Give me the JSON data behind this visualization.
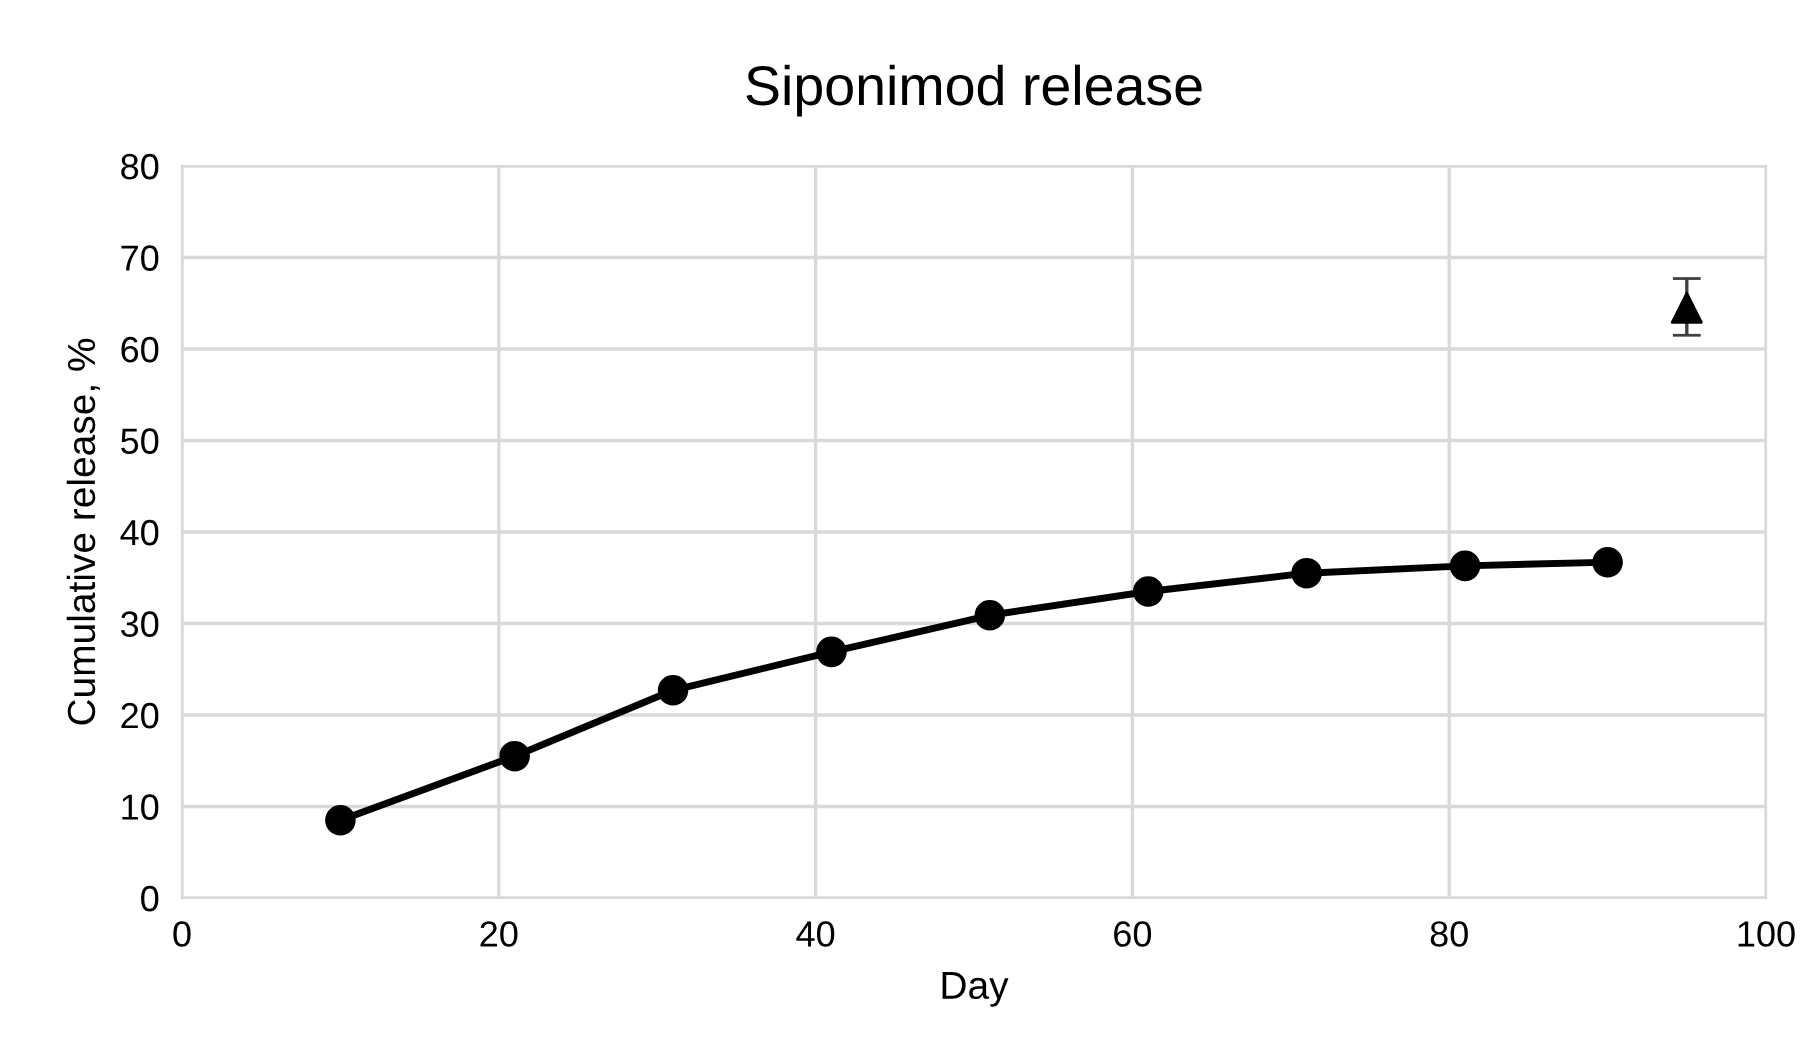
{
  "chart_data": {
    "type": "line",
    "title": "Siponimod release",
    "xlabel": "Day",
    "ylabel": "Cumulative release, %",
    "xlim": [
      0,
      100
    ],
    "xticks": [
      0,
      20,
      40,
      60,
      80,
      100
    ],
    "ylim": [
      0,
      80
    ],
    "yticks": [
      0,
      10,
      20,
      30,
      40,
      50,
      60,
      70,
      80
    ],
    "grid": true,
    "series": [
      {
        "color": "#000000",
        "marker": "circle",
        "line_style": "solid",
        "x": [
          10,
          21,
          31,
          41,
          51,
          61,
          71,
          81,
          90
        ],
        "values": [
          8.5,
          15.5,
          22.7,
          26.9,
          30.9,
          33.5,
          35.5,
          36.3,
          36.7
        ]
      },
      {
        "type": "scatter",
        "color": "#000000",
        "marker": "triangle",
        "x": [
          95
        ],
        "values": [
          64.5
        ],
        "errors": [
          [
            61.5,
            67.7
          ]
        ]
      }
    ]
  }
}
